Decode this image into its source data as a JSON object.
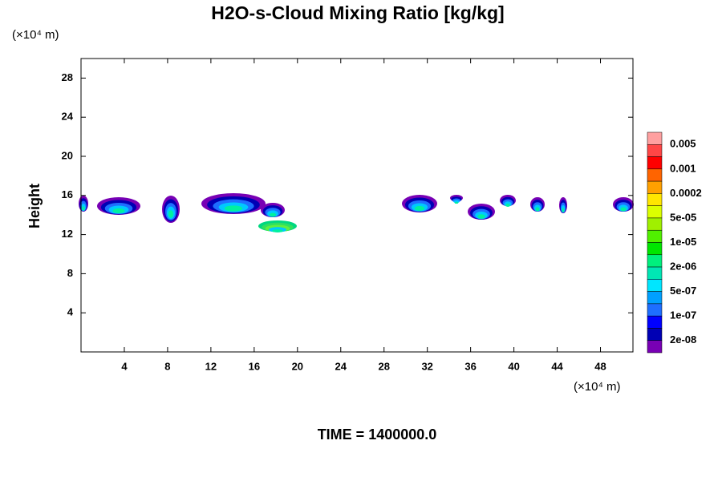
{
  "chart_data": {
    "type": "contour",
    "title": "H2O-s-Cloud Mixing Ratio [kg/kg]",
    "ylabel": "Height",
    "y_unit": "(×10⁴ m)",
    "x_unit": "(×10⁴ m)",
    "footer": "TIME = 1400000.0",
    "xlim": [
      0,
      51
    ],
    "ylim": [
      0,
      30
    ],
    "xticks": [
      4,
      8,
      12,
      16,
      20,
      24,
      28,
      32,
      36,
      40,
      44,
      48
    ],
    "yticks": [
      4,
      8,
      12,
      16,
      20,
      24,
      28
    ],
    "colorbar": {
      "colors": [
        "#ffa0a0",
        "#ff4646",
        "#ff0000",
        "#ff6400",
        "#ffa000",
        "#ffe600",
        "#dcff00",
        "#a0f000",
        "#50f000",
        "#00e600",
        "#00f07d",
        "#00e6b4",
        "#00e6ff",
        "#00a0ff",
        "#1e6eff",
        "#0000ff",
        "#0000b4",
        "#7800b4"
      ],
      "levels": [
        0.005,
        0.001,
        0.0002,
        {
          "value": 5e-05,
          "label": "5e-05"
        },
        {
          "value": 1e-05,
          "label": "1e-05"
        },
        {
          "value": 2e-06,
          "label": "2e-06"
        },
        {
          "value": 5e-07,
          "label": "5e-07"
        },
        {
          "value": 1e-07,
          "label": "1e-07"
        },
        {
          "value": 2e-08,
          "label": "2e-08"
        }
      ]
    }
  }
}
